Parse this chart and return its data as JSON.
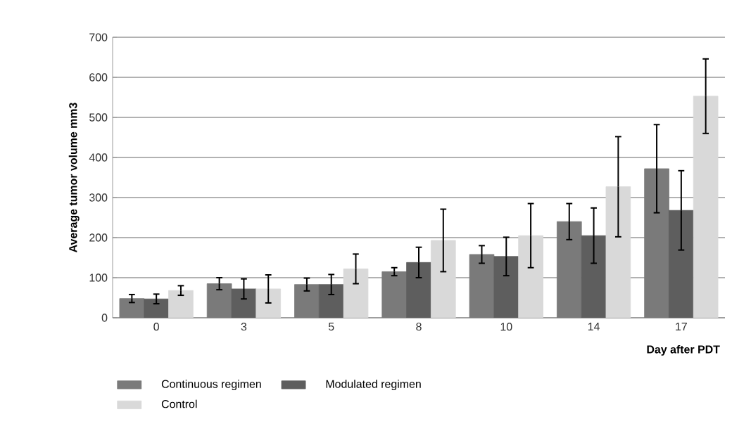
{
  "chart_data": {
    "type": "bar",
    "xlabel": "Day after PDT",
    "ylabel": "Average tumor volume mm3",
    "categories": [
      "0",
      "3",
      "5",
      "8",
      "10",
      "14",
      "17"
    ],
    "series": [
      {
        "name": "Continuous regimen",
        "color": "#7a7a7a",
        "values": [
          48,
          85,
          83,
          115,
          158,
          240,
          372
        ],
        "errors": [
          10,
          15,
          16,
          10,
          22,
          45,
          110
        ]
      },
      {
        "name": "Modulated regimen",
        "color": "#5e5e5e",
        "values": [
          47,
          72,
          83,
          138,
          153,
          205,
          268
        ],
        "errors": [
          12,
          25,
          25,
          38,
          48,
          69,
          99
        ]
      },
      {
        "name": "Control",
        "color": "#d9d9d9",
        "values": [
          68,
          72,
          122,
          193,
          205,
          327,
          553
        ],
        "errors": [
          12,
          35,
          37,
          78,
          80,
          125,
          93
        ]
      }
    ],
    "ylim": [
      0,
      700
    ],
    "yticks": [
      0,
      100,
      200,
      300,
      400,
      500,
      600,
      700
    ],
    "grid": "y",
    "legend": "bottom left"
  }
}
